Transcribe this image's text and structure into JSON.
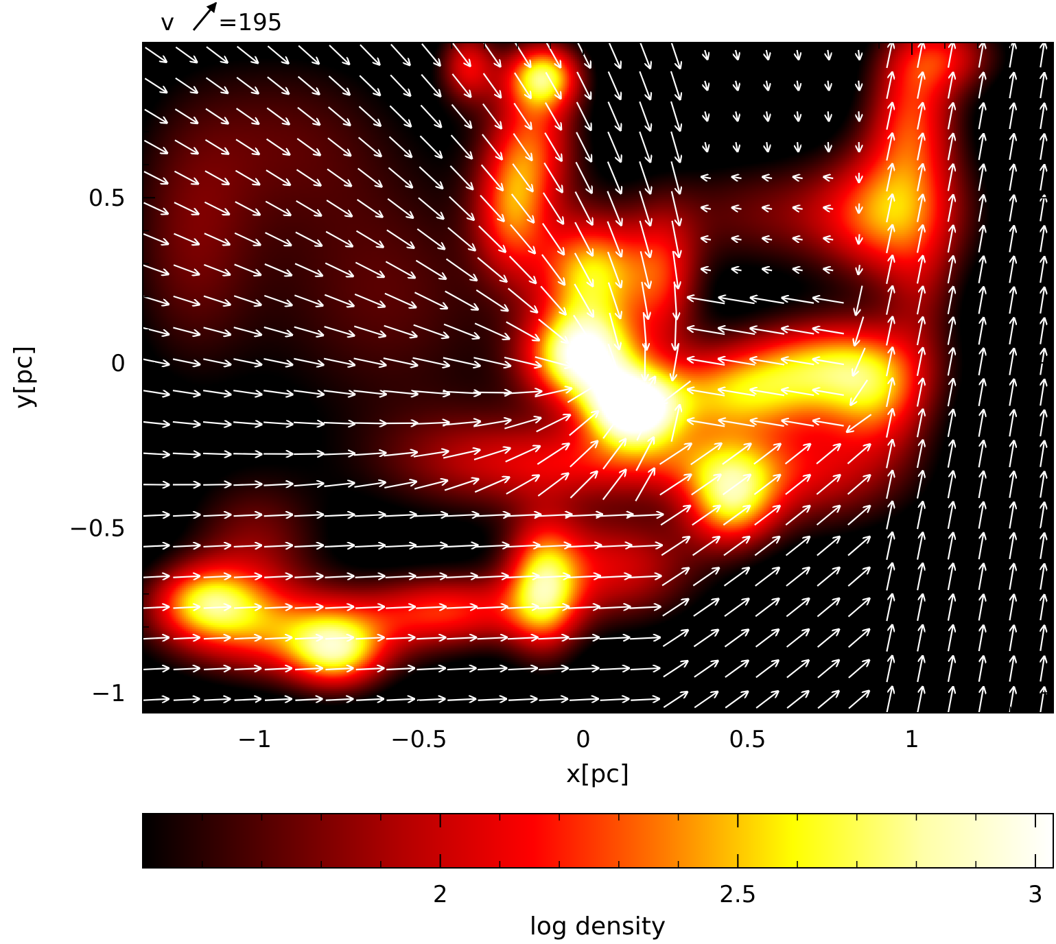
{
  "chart_data": {
    "type": "heatmap",
    "title": "",
    "xlabel": "x[pc]",
    "ylabel": "y[pc]",
    "xlim": [
      -1.34,
      1.43
    ],
    "ylim": [
      -1.06,
      0.97
    ],
    "x_ticks": [
      -1,
      -0.5,
      0,
      0.5,
      1
    ],
    "x_tick_labels": [
      "−1",
      "−0.5",
      "0",
      "0.5",
      "1"
    ],
    "y_ticks": [
      -1,
      -0.5,
      0,
      0.5
    ],
    "y_tick_labels": [
      "−1",
      "−0.5",
      "0",
      "0.5"
    ],
    "grid": false,
    "vector_key": {
      "label": "v",
      "value_text": "=195",
      "value": 195
    },
    "colorbar": {
      "label": "log density",
      "range": [
        1.5,
        3.03
      ],
      "ticks": [
        2,
        2.5,
        3
      ],
      "tick_labels": [
        "2",
        "2.5",
        "3"
      ],
      "colormap": [
        "#000000",
        "#5a0000",
        "#b40000",
        "#ff0000",
        "#ff7a00",
        "#ffff00",
        "#ffffa8",
        "#ffffff"
      ]
    },
    "density_blobs": [
      {
        "x": 0.0,
        "y": 0.02,
        "sx": 0.12,
        "sy": 0.1,
        "v": 1.0
      },
      {
        "x": 0.15,
        "y": -0.14,
        "sx": 0.1,
        "sy": 0.08,
        "v": 0.95
      },
      {
        "x": 0.03,
        "y": 0.27,
        "sx": 0.12,
        "sy": 0.12,
        "v": 0.72
      },
      {
        "x": -0.22,
        "y": 0.45,
        "sx": 0.08,
        "sy": 0.14,
        "v": 0.45
      },
      {
        "x": -0.15,
        "y": 0.67,
        "sx": 0.1,
        "sy": 0.15,
        "v": 0.5
      },
      {
        "x": -0.12,
        "y": 0.87,
        "sx": 0.08,
        "sy": 0.07,
        "v": 0.7
      },
      {
        "x": -0.35,
        "y": 0.9,
        "sx": 0.06,
        "sy": 0.08,
        "v": 0.45
      },
      {
        "x": 0.45,
        "y": -0.1,
        "sx": 0.2,
        "sy": 0.1,
        "v": 0.62
      },
      {
        "x": 0.75,
        "y": 0.0,
        "sx": 0.2,
        "sy": 0.1,
        "v": 0.6
      },
      {
        "x": 0.9,
        "y": -0.12,
        "sx": 0.12,
        "sy": 0.12,
        "v": 0.45
      },
      {
        "x": 0.45,
        "y": -0.42,
        "sx": 0.1,
        "sy": 0.1,
        "v": 0.65
      },
      {
        "x": 0.7,
        "y": -0.35,
        "sx": 0.22,
        "sy": 0.12,
        "v": 0.35
      },
      {
        "x": -0.12,
        "y": -0.68,
        "sx": 0.08,
        "sy": 0.14,
        "v": 0.68
      },
      {
        "x": 0.1,
        "y": -0.62,
        "sx": 0.18,
        "sy": 0.12,
        "v": 0.45
      },
      {
        "x": -0.4,
        "y": -0.75,
        "sx": 0.18,
        "sy": 0.08,
        "v": 0.5
      },
      {
        "x": -0.9,
        "y": -0.82,
        "sx": 0.25,
        "sy": 0.1,
        "v": 0.55
      },
      {
        "x": -1.15,
        "y": -0.72,
        "sx": 0.12,
        "sy": 0.08,
        "v": 0.6
      },
      {
        "x": -0.75,
        "y": -0.88,
        "sx": 0.1,
        "sy": 0.08,
        "v": 0.55
      },
      {
        "x": -1.0,
        "y": -0.55,
        "sx": 0.15,
        "sy": 0.15,
        "v": 0.3
      },
      {
        "x": -0.3,
        "y": -0.3,
        "sx": 0.25,
        "sy": 0.12,
        "v": 0.3
      },
      {
        "x": -0.6,
        "y": 0.2,
        "sx": 0.3,
        "sy": 0.3,
        "v": 0.25
      },
      {
        "x": -1.2,
        "y": 0.35,
        "sx": 0.15,
        "sy": 0.3,
        "v": 0.25
      },
      {
        "x": -0.9,
        "y": 0.7,
        "sx": 0.25,
        "sy": 0.2,
        "v": 0.2
      },
      {
        "x": 0.25,
        "y": 0.25,
        "sx": 0.08,
        "sy": 0.15,
        "v": 0.4
      },
      {
        "x": 0.6,
        "y": 0.45,
        "sx": 0.3,
        "sy": 0.12,
        "v": 0.28
      },
      {
        "x": 0.95,
        "y": 0.45,
        "sx": 0.15,
        "sy": 0.15,
        "v": 0.55
      },
      {
        "x": 1.0,
        "y": 0.75,
        "sx": 0.1,
        "sy": 0.15,
        "v": 0.5
      },
      {
        "x": 1.1,
        "y": 0.93,
        "sx": 0.12,
        "sy": 0.08,
        "v": 0.4
      },
      {
        "x": 1.03,
        "y": 0.2,
        "sx": 0.08,
        "sy": 0.12,
        "v": 0.2
      },
      {
        "x": 0.2,
        "y": -0.3,
        "sx": 0.3,
        "sy": 0.08,
        "v": 0.4
      }
    ],
    "velocity_field": {
      "grid_x_start": -1.3,
      "grid_x_step": 0.093,
      "grid_y_start": -1.02,
      "grid_y_step": 0.093,
      "max_speed": 195
    }
  }
}
